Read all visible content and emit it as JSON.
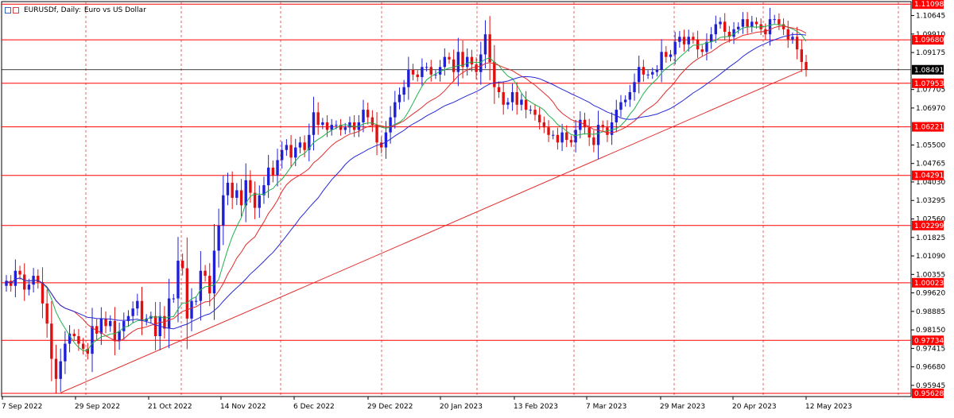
{
  "title": {
    "symbol": "EURUSDf, Daily:",
    "description": "Euro vs US Dollar"
  },
  "colors": {
    "background": "#ffffff",
    "bull": "#1f1fd6",
    "bear": "#e01010",
    "grid": "#d94040",
    "ma_fast": "#22b14c",
    "ma_mid": "#e22b2b",
    "ma_slow": "#2a2ad6",
    "trendline": "#e22b2b",
    "label_red": "#ff0000",
    "label_text": "#ffffff"
  },
  "chart_data": {
    "type": "candlestick",
    "ylim": [
      0.955,
      1.112
    ],
    "y_ticks": [
      "1.10645",
      "1.09910",
      "1.09175",
      "1.07705",
      "1.06970",
      "1.05500",
      "1.04765",
      "1.04030",
      "1.03295",
      "1.02560",
      "1.01825",
      "1.01090",
      "1.00355",
      "0.99620",
      "0.98885",
      "0.98150",
      "0.97415",
      "0.96680",
      "0.95945"
    ],
    "x_labels": [
      "7 Sep 2022",
      "29 Sep 2022",
      "21 Oct 2022",
      "14 Nov 2022",
      "6 Dec 2022",
      "29 Dec 2022",
      "20 Jan 2023",
      "13 Feb 2023",
      "7 Mar 2023",
      "29 Mar 2023",
      "20 Apr 2023",
      "12 May 2023"
    ],
    "horizontal_levels": [
      {
        "value": 1.11098,
        "label": "1.11098"
      },
      {
        "value": 1.0968,
        "label": "1.09680"
      },
      {
        "value": 1.07953,
        "label": "1.07953"
      },
      {
        "value": 1.06221,
        "label": "1.06221"
      },
      {
        "value": 1.04291,
        "label": "1.04291"
      },
      {
        "value": 1.02299,
        "label": "1.02299"
      },
      {
        "value": 1.00023,
        "label": "1.00023"
      },
      {
        "value": 0.97734,
        "label": "0.97734"
      },
      {
        "value": 0.95628,
        "label": "0.95628"
      }
    ],
    "current_price": {
      "value": 1.08491,
      "label": "1.08491"
    },
    "trendline": [
      {
        "bar": 12,
        "price": 0.9565
      },
      {
        "bar": 176,
        "price": 1.0845
      }
    ],
    "closes": [
      1.001,
      0.999,
      1.005,
      1.0035,
      0.9975,
      0.9995,
      1.003,
      1.0005,
      0.992,
      0.984,
      0.97,
      0.962,
      0.969,
      0.976,
      0.98,
      0.979,
      0.976,
      0.974,
      0.972,
      0.983,
      0.98,
      0.986,
      0.983,
      0.985,
      0.977,
      0.981,
      0.985,
      0.987,
      0.99,
      0.993,
      0.985,
      0.986,
      0.987,
      0.979,
      0.987,
      0.982,
      0.994,
      0.994,
      1.009,
      1.006,
      0.986,
      0.993,
      0.993,
      1.005,
      1.003,
      0.996,
      1.013,
      1.023,
      1.035,
      1.04,
      1.034,
      1.037,
      1.031,
      1.041,
      1.036,
      1.03,
      1.035,
      1.039,
      1.046,
      1.043,
      1.049,
      1.053,
      1.055,
      1.05,
      1.054,
      1.056,
      1.053,
      1.059,
      1.068,
      1.063,
      1.064,
      1.061,
      1.063,
      1.063,
      1.061,
      1.062,
      1.064,
      1.061,
      1.064,
      1.069,
      1.066,
      1.063,
      1.056,
      1.054,
      1.06,
      1.066,
      1.072,
      1.075,
      1.078,
      1.085,
      1.083,
      1.082,
      1.086,
      1.086,
      1.083,
      1.083,
      1.086,
      1.09,
      1.089,
      1.084,
      1.092,
      1.086,
      1.09,
      1.087,
      1.084,
      1.091,
      1.099,
      1.088,
      1.078,
      1.076,
      1.071,
      1.072,
      1.076,
      1.071,
      1.073,
      1.069,
      1.069,
      1.067,
      1.064,
      1.062,
      1.059,
      1.059,
      1.056,
      1.06,
      1.057,
      1.056,
      1.061,
      1.065,
      1.062,
      1.058,
      1.055,
      1.063,
      1.062,
      1.059,
      1.064,
      1.069,
      1.072,
      1.073,
      1.076,
      1.08,
      1.086,
      1.083,
      1.083,
      1.084,
      1.085,
      1.092,
      1.09,
      1.091,
      1.096,
      1.098,
      1.095,
      1.098,
      1.097,
      1.093,
      1.092,
      1.096,
      1.099,
      1.103,
      1.104,
      1.1,
      1.098,
      1.101,
      1.102,
      1.105,
      1.102,
      1.104,
      1.103,
      1.101,
      1.099,
      1.105,
      1.105,
      1.103,
      1.101,
      1.097,
      1.098,
      1.093,
      1.088,
      1.085
    ]
  }
}
